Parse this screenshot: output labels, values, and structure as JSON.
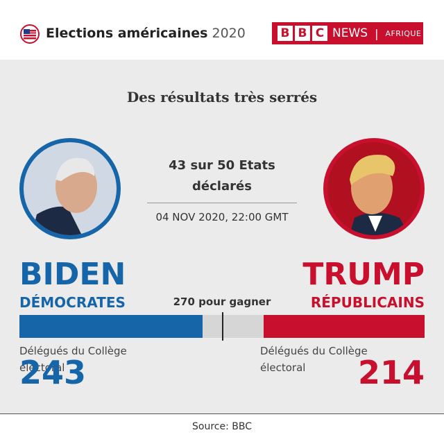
{
  "header": {
    "title": "Elections américaines",
    "year": "2020",
    "brand": {
      "letters": [
        "B",
        "B",
        "C"
      ],
      "news": "NEWS",
      "region": "AFRIQUE"
    }
  },
  "subtitle": "Des résultats très serrés",
  "status": {
    "line1": "43 sur 50 Etats",
    "line2": "déclarés",
    "date": "04 NOV 2020, 22:00 GMT"
  },
  "candidates": [
    {
      "name": "BIDEN",
      "party": "DÉMOCRATES",
      "color": "#1565a8",
      "votes_label": "Délégués du Collège électoral",
      "votes": 243
    },
    {
      "name": "TRUMP",
      "party": "RÉPUBLICAINS",
      "color": "#c8102e",
      "votes_label": "Délégués du Collège électoral",
      "votes": 214
    }
  ],
  "bar": {
    "xlim": [
      0,
      538
    ],
    "threshold": {
      "value": 270,
      "label": "270 pour gagner"
    }
  },
  "source": "Source: BBC"
}
